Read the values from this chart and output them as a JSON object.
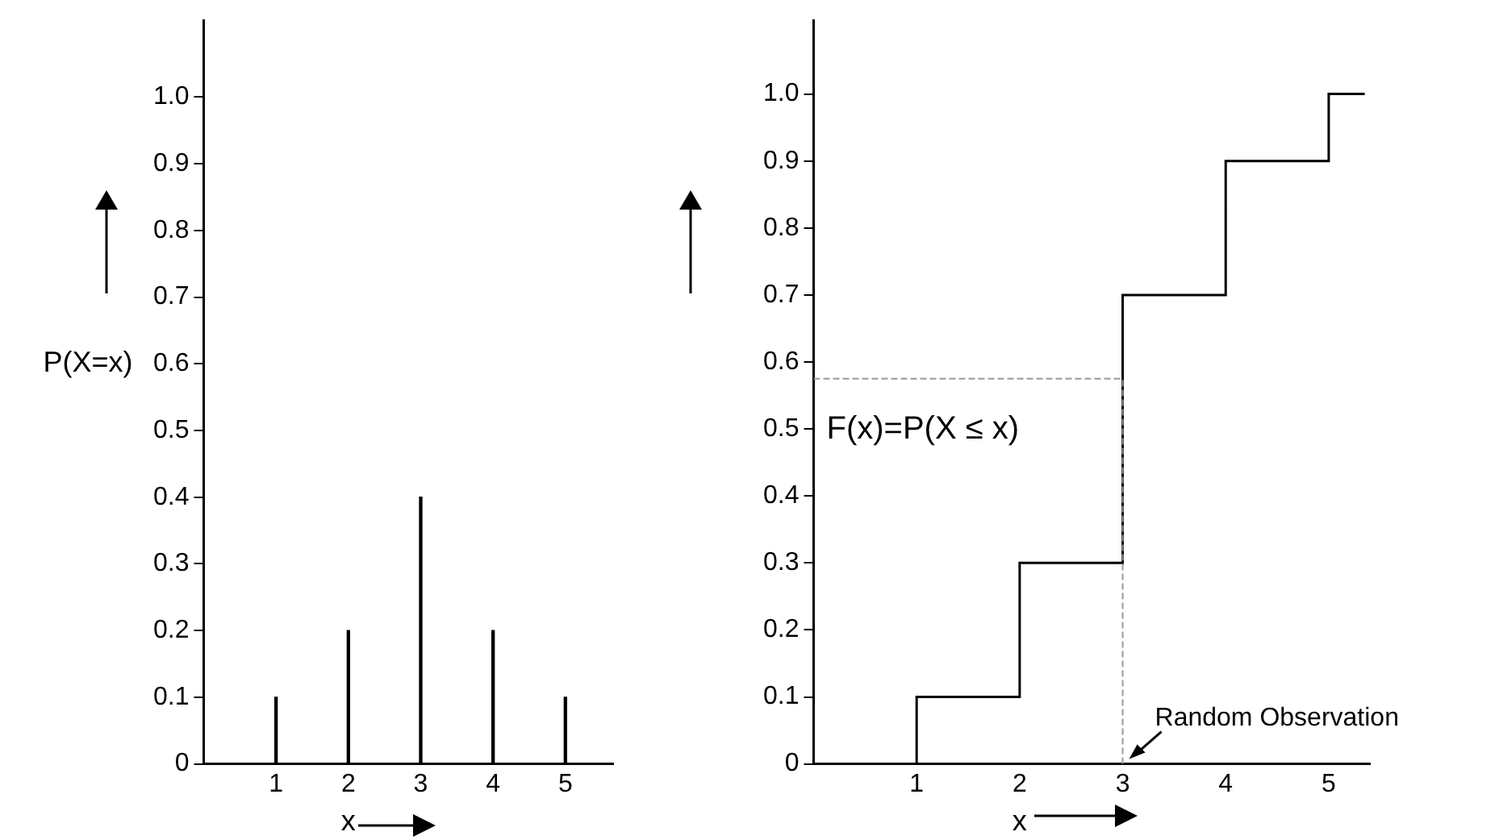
{
  "chart_data": [
    {
      "type": "bar",
      "ylabel": "P(X=x)",
      "xlabel": "x",
      "x": [
        1,
        2,
        3,
        4,
        5
      ],
      "values": [
        0.1,
        0.2,
        0.4,
        0.2,
        0.1
      ],
      "color": "#000000",
      "xlim": [
        0,
        5.66
      ],
      "xticks": [
        1,
        2,
        3,
        4,
        5
      ],
      "ylim": [
        0,
        1.115
      ],
      "yticks": [
        0,
        0.1,
        0.2,
        0.3,
        0.4,
        0.5,
        0.6,
        0.7,
        0.8,
        0.9,
        {
          "value": 1,
          "label": "1.0"
        }
      ],
      "grid": false
    },
    {
      "type": "step",
      "xlabel": "x",
      "x": [
        0,
        1,
        2,
        3,
        4,
        5,
        5.35
      ],
      "values": [
        0,
        0.1,
        0.3,
        0.7,
        0.9,
        1,
        1
      ],
      "color": "#000000",
      "xlim": [
        0,
        5.4
      ],
      "xticks": [
        1,
        2,
        3,
        4,
        5
      ],
      "ylim": [
        0,
        1.11
      ],
      "yticks": [
        0,
        0.1,
        0.2,
        0.3,
        0.4,
        0.5,
        0.6,
        0.7,
        0.8,
        0.9,
        {
          "value": 1,
          "label": "1.0"
        }
      ],
      "grid": false,
      "ref_lines": [
        {
          "axis": "y",
          "value": 0.575,
          "color": "#999999",
          "line_style": "dashed"
        },
        {
          "axis": "x",
          "value": 3,
          "color": "#999999",
          "line_style": "dashed"
        }
      ],
      "annotations": [
        "F(x)=P(X ≤ x)",
        {
          "text": "Random Observation",
          "x": 3,
          "y": 0
        }
      ]
    }
  ]
}
